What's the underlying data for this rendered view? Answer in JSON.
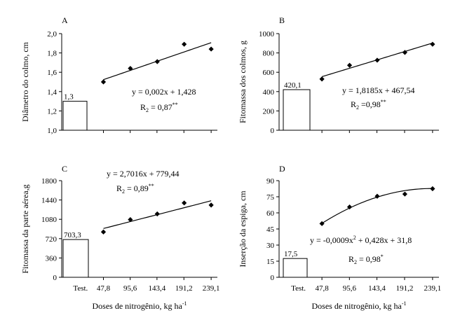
{
  "figure": {
    "x_tick_labels": [
      "Test.",
      "47,8",
      "95,6",
      "143,4",
      "191,2",
      "239,1"
    ],
    "x_axis_label": "Doses de nitrogênio, kg ha",
    "x_axis_label_sup": "-1"
  },
  "chart_data": [
    {
      "type": "scatter",
      "panel": "A",
      "ylabel": "Diâmetro do colmo, cm",
      "ylim": [
        1.0,
        2.0
      ],
      "yticks": [
        "1,0",
        "1,2",
        "1,4",
        "1,6",
        "1,8",
        "2,0"
      ],
      "control": {
        "label": "Test.",
        "value": 1.3,
        "value_label": "1,3"
      },
      "x": [
        47.8,
        95.6,
        143.4,
        191.2,
        239.1
      ],
      "y": [
        1.5,
        1.64,
        1.71,
        1.89,
        1.84
      ],
      "fit": {
        "type": "linear",
        "a": 0.002,
        "b": 1.428
      },
      "equation": "y = 0,002x + 1,428",
      "r2_label": "R",
      "r2_sub": "2",
      "r2_value": " = 0,87",
      "r2_sig": "**"
    },
    {
      "type": "scatter",
      "panel": "B",
      "ylabel": "Fitomassa dos colmos, g",
      "ylim": [
        0,
        1000
      ],
      "yticks": [
        "0",
        "200",
        "400",
        "600",
        "800",
        "1000"
      ],
      "control": {
        "label": "Test.",
        "value": 420.1,
        "value_label": "420,1"
      },
      "x": [
        47.8,
        95.6,
        143.4,
        191.2,
        239.1
      ],
      "y": [
        530,
        672,
        725,
        805,
        890
      ],
      "fit": {
        "type": "linear",
        "a": 1.8185,
        "b": 467.54
      },
      "equation": "y = 1,8185x + 467,54",
      "r2_label": "R",
      "r2_sub": "2",
      "r2_value": " =0,98",
      "r2_sig": "**"
    },
    {
      "type": "scatter",
      "panel": "C",
      "ylabel": "Fitomassa da parte aérea,g",
      "ylim": [
        0,
        1800
      ],
      "yticks": [
        "0",
        "360",
        "720",
        "1080",
        "1440",
        "1800"
      ],
      "control": {
        "label": "Test.",
        "value": 703.3,
        "value_label": "703,3"
      },
      "x": [
        47.8,
        95.6,
        143.4,
        191.2,
        239.1
      ],
      "y": [
        845,
        1075,
        1180,
        1385,
        1345
      ],
      "fit": {
        "type": "linear",
        "a": 2.7016,
        "b": 779.44
      },
      "equation": "y = 2,7016x + 779,44",
      "r2_label": "R",
      "r2_sub": "2",
      "r2_value": " = 0,89",
      "r2_sig": "**"
    },
    {
      "type": "scatter",
      "panel": "D",
      "ylabel": "Inserção da espiga, cm",
      "ylim": [
        0,
        90
      ],
      "yticks": [
        "0",
        "15",
        "30",
        "45",
        "60",
        "75",
        "90"
      ],
      "control": {
        "label": "Test.",
        "value": 17.5,
        "value_label": "17,5"
      },
      "x": [
        47.8,
        95.6,
        143.4,
        191.2,
        239.1
      ],
      "y": [
        50,
        65.5,
        75.5,
        77.5,
        82.5
      ],
      "fit": {
        "type": "quadratic",
        "a": -0.0009,
        "b": 0.428,
        "c": 31.8
      },
      "equation": "y = -0,0009x",
      "equation_sup": "2",
      "equation_rest": "+ 0,428x + 31,8",
      "r2_label": "R",
      "r2_sub": "2",
      "r2_value": " = 0,98",
      "r2_sig": "*"
    }
  ]
}
